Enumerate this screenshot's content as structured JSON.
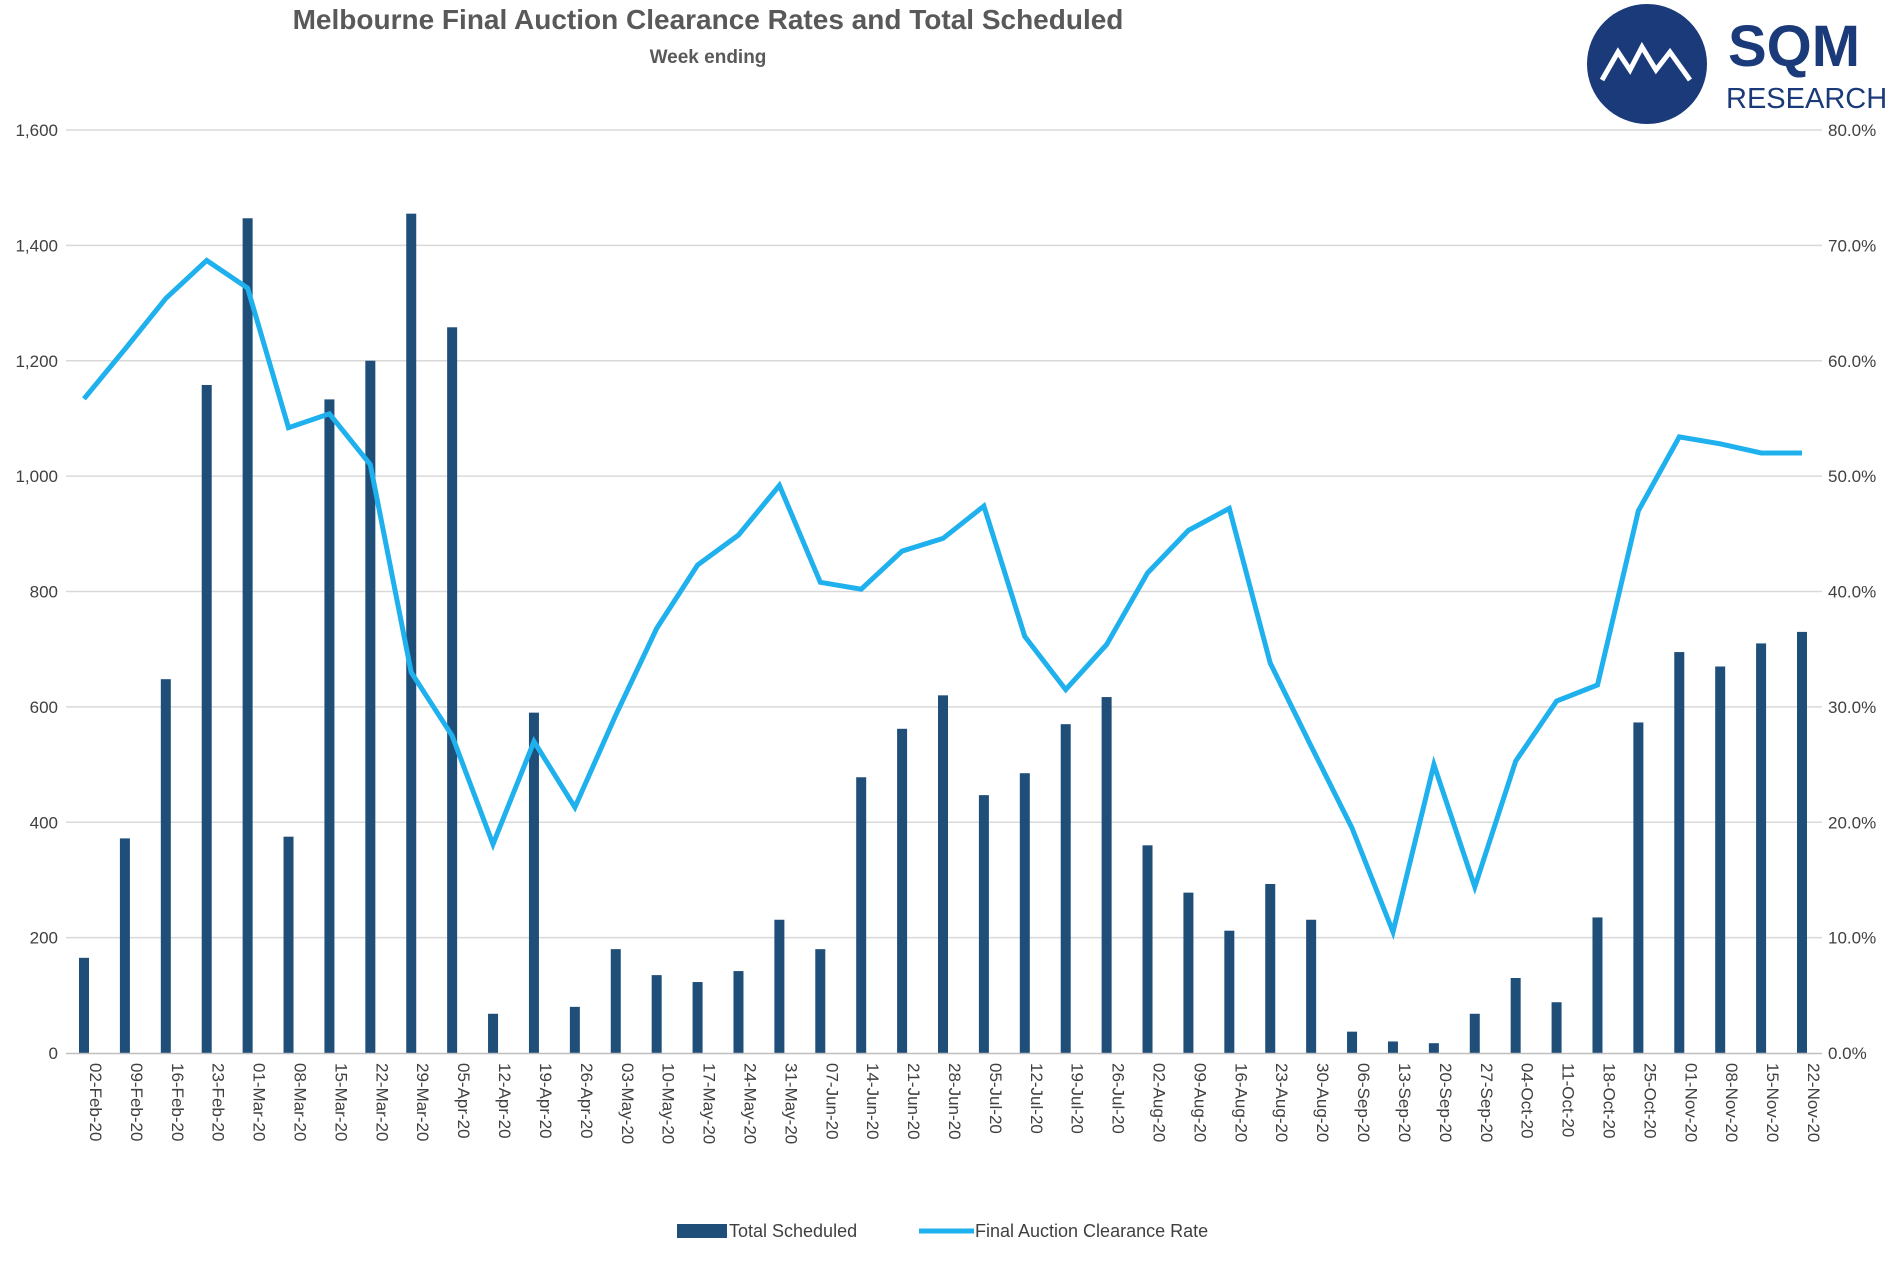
{
  "chart_data": {
    "type": "bar+line",
    "title": "Melbourne Final Auction Clearance Rates and Total Scheduled",
    "subtitle": "Week ending",
    "categories": [
      "02-Feb-20",
      "09-Feb-20",
      "16-Feb-20",
      "23-Feb-20",
      "01-Mar-20",
      "08-Mar-20",
      "15-Mar-20",
      "22-Mar-20",
      "29-Mar-20",
      "05-Apr-20",
      "12-Apr-20",
      "19-Apr-20",
      "26-Apr-20",
      "03-May-20",
      "10-May-20",
      "17-May-20",
      "24-May-20",
      "31-May-20",
      "07-Jun-20",
      "14-Jun-20",
      "21-Jun-20",
      "28-Jun-20",
      "05-Jul-20",
      "12-Jul-20",
      "19-Jul-20",
      "26-Jul-20",
      "02-Aug-20",
      "09-Aug-20",
      "16-Aug-20",
      "23-Aug-20",
      "30-Aug-20",
      "06-Sep-20",
      "13-Sep-20",
      "20-Sep-20",
      "27-Sep-20",
      "04-Oct-20",
      "11-Oct-20",
      "18-Oct-20",
      "25-Oct-20",
      "01-Nov-20",
      "08-Nov-20",
      "15-Nov-20",
      "22-Nov-20"
    ],
    "series": [
      {
        "name": "Total Scheduled",
        "type": "bar",
        "axis": "left",
        "color": "#1F4E79",
        "values": [
          165,
          372,
          648,
          1158,
          1447,
          375,
          1133,
          1200,
          1455,
          1258,
          68,
          590,
          80,
          180,
          135,
          123,
          142,
          231,
          180,
          478,
          562,
          620,
          447,
          485,
          570,
          617,
          360,
          278,
          212,
          293,
          231,
          37,
          20,
          17,
          68,
          130,
          88,
          235,
          573,
          695,
          670,
          710,
          730
        ]
      },
      {
        "name": "Final Auction Clearance Rate",
        "type": "line",
        "axis": "right",
        "color": "#1FB0EE",
        "values": [
          56.7,
          61.0,
          65.4,
          68.7,
          66.3,
          54.2,
          55.4,
          51.0,
          33.0,
          27.5,
          18.1,
          27.0,
          21.3,
          29.3,
          36.8,
          42.3,
          44.9,
          49.2,
          40.8,
          40.2,
          43.5,
          44.6,
          47.4,
          36.1,
          31.5,
          35.4,
          41.6,
          45.3,
          47.2,
          33.8,
          26.6,
          19.5,
          10.5,
          25.0,
          14.4,
          25.3,
          30.5,
          31.9,
          47.0,
          53.4,
          52.8,
          52.0,
          52.0
        ]
      }
    ],
    "y_left": {
      "min": 0,
      "max": 1600,
      "ticks": [
        0,
        200,
        400,
        600,
        800,
        1000,
        1200,
        1400,
        1600
      ],
      "tick_labels": [
        "0",
        "200",
        "400",
        "600",
        "800",
        "1,000",
        "1,200",
        "1,400",
        "1,600"
      ]
    },
    "y_right": {
      "min": 0,
      "max": 80,
      "ticks": [
        0,
        10,
        20,
        30,
        40,
        50,
        60,
        70,
        80
      ],
      "tick_labels": [
        "0.0%",
        "10.0%",
        "20.0%",
        "30.0%",
        "40.0%",
        "50.0%",
        "60.0%",
        "70.0%",
        "80.0%"
      ]
    },
    "grid": true,
    "legend": "bottom-center"
  },
  "logo": {
    "name": "SQM",
    "tagline": "RESEARCH",
    "colors": {
      "primary": "#1B3A7A",
      "background": "#FFFFFF"
    }
  },
  "colors": {
    "gridline": "#D9D9D9",
    "axis": "#BFBFBF",
    "text": "#404040"
  }
}
